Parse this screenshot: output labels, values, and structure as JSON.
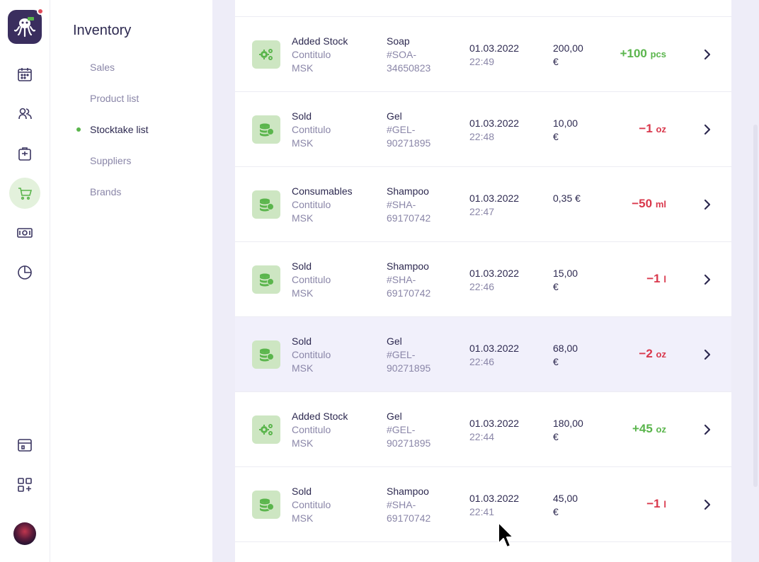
{
  "sidebar": {
    "notification_color": "#e04b5a",
    "icons": [
      "calendar-icon",
      "clients-icon",
      "services-icon",
      "cart-icon",
      "money-icon",
      "reports-icon",
      "layout-icon",
      "apps-icon"
    ],
    "active": "cart-icon"
  },
  "submenu": {
    "title": "Inventory",
    "items": [
      "Sales",
      "Product list",
      "Stocktake list",
      "Suppliers",
      "Brands"
    ],
    "active_index": 2
  },
  "rows": [
    {
      "kind": "gears",
      "type": "Added Stock",
      "location_1": "Contitulo",
      "location_2": "MSK",
      "product": "Soap",
      "code_1": "#SOA-",
      "code_2": "34650823",
      "date": "01.03.2022",
      "time": "22:49",
      "price_1": "200,00",
      "price_2": "€",
      "qty": "+100",
      "unit": "pcs",
      "sign": "pos"
    },
    {
      "kind": "coins",
      "type": "Sold",
      "location_1": "Contitulo",
      "location_2": "MSK",
      "product": "Gel",
      "code_1": "#GEL-",
      "code_2": "90271895",
      "date": "01.03.2022",
      "time": "22:48",
      "price_1": "10,00",
      "price_2": "€",
      "qty": "−1",
      "unit": "oz",
      "sign": "neg"
    },
    {
      "kind": "coins",
      "type": "Consumables",
      "location_1": "Contitulo",
      "location_2": "MSK",
      "product": "Shampoo",
      "code_1": "#SHA-",
      "code_2": "69170742",
      "date": "01.03.2022",
      "time": "22:47",
      "price_1": "0,35 €",
      "price_2": "",
      "qty": "−50",
      "unit": "ml",
      "sign": "neg"
    },
    {
      "kind": "coins",
      "type": "Sold",
      "location_1": "Contitulo",
      "location_2": "MSK",
      "product": "Shampoo",
      "code_1": "#SHA-",
      "code_2": "69170742",
      "date": "01.03.2022",
      "time": "22:46",
      "price_1": "15,00",
      "price_2": "€",
      "qty": "−1",
      "unit": "l",
      "sign": "neg"
    },
    {
      "kind": "coins",
      "type": "Sold",
      "location_1": "Contitulo",
      "location_2": "MSK",
      "product": "Gel",
      "code_1": "#GEL-",
      "code_2": "90271895",
      "date": "01.03.2022",
      "time": "22:46",
      "price_1": "68,00",
      "price_2": "€",
      "qty": "−2",
      "unit": "oz",
      "sign": "neg"
    },
    {
      "kind": "gears",
      "type": "Added Stock",
      "location_1": "Contitulo",
      "location_2": "MSK",
      "product": "Gel",
      "code_1": "#GEL-",
      "code_2": "90271895",
      "date": "01.03.2022",
      "time": "22:44",
      "price_1": "180,00",
      "price_2": "€",
      "qty": "+45",
      "unit": "oz",
      "sign": "pos"
    },
    {
      "kind": "coins",
      "type": "Sold",
      "location_1": "Contitulo",
      "location_2": "MSK",
      "product": "Shampoo",
      "code_1": "#SHA-",
      "code_2": "69170742",
      "date": "01.03.2022",
      "time": "22:41",
      "price_1": "45,00",
      "price_2": "€",
      "qty": "−1",
      "unit": "l",
      "sign": "neg"
    }
  ],
  "highlighted_row": 4,
  "colors": {
    "accent_green": "#5ab54c",
    "negative_red": "#d9384c",
    "text_dark": "#2d2950",
    "text_muted": "#8a86a8",
    "icon_bg": "#cde6c2"
  }
}
